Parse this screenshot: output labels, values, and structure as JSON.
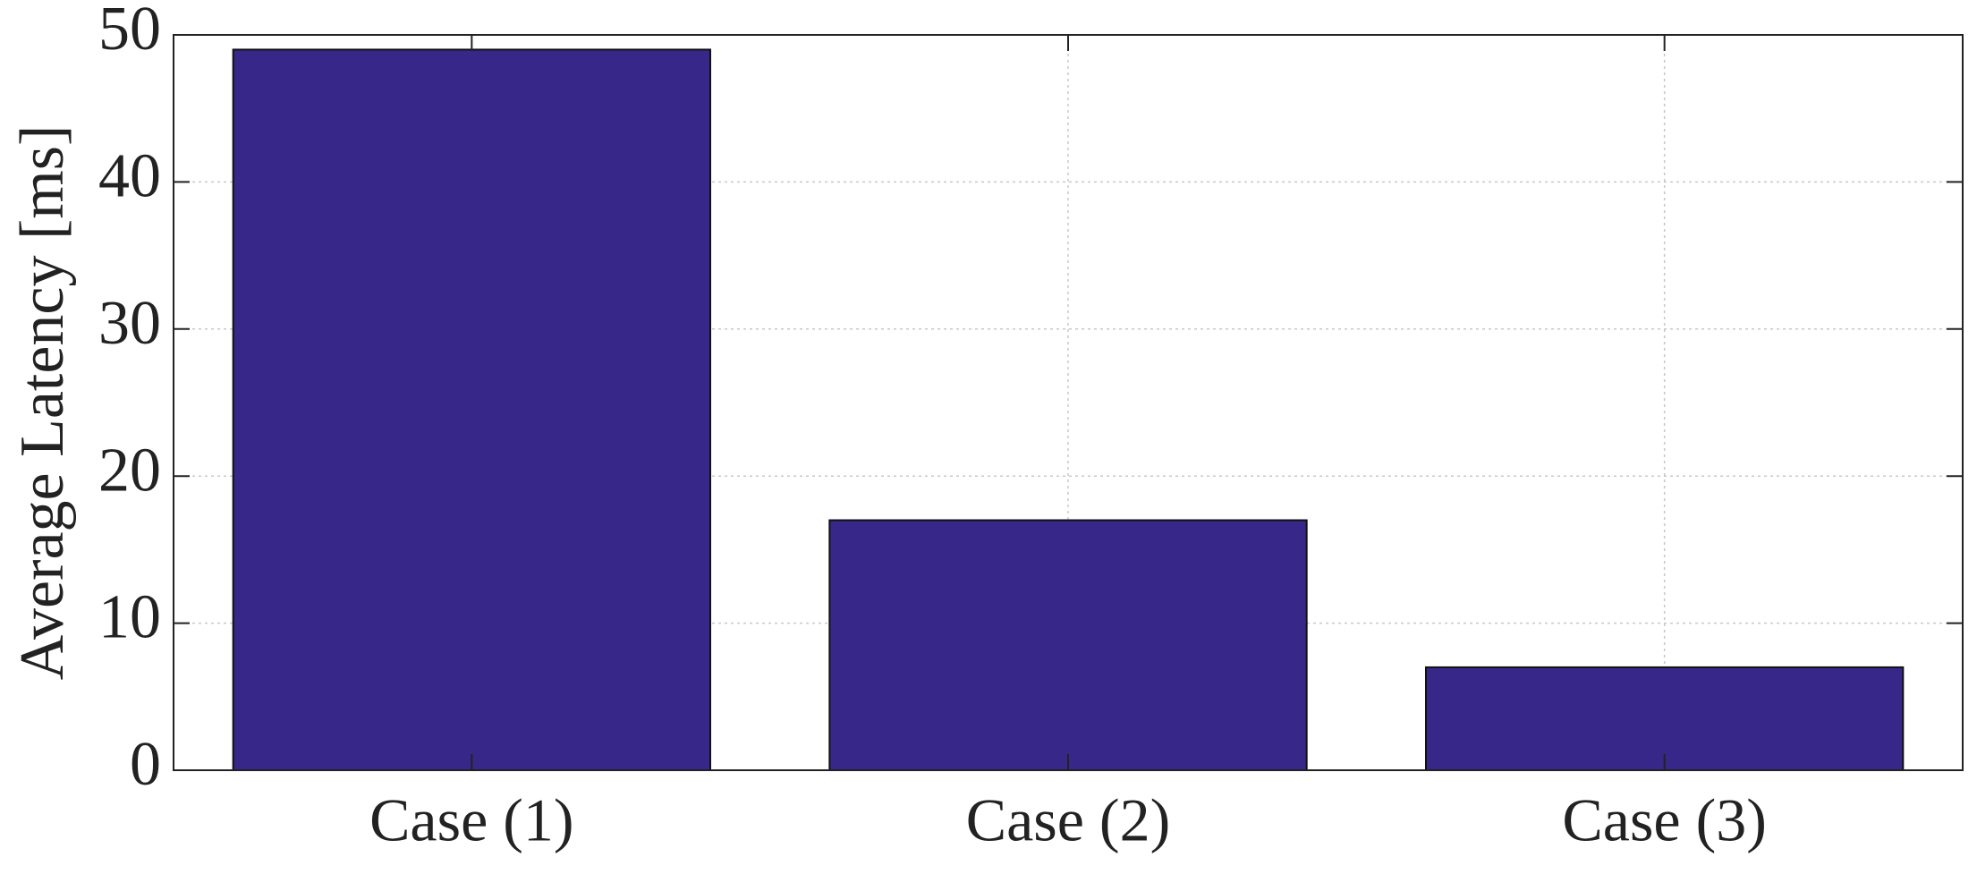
{
  "chart_data": {
    "type": "bar",
    "ylabel": "Average Latency  [ms]",
    "categories": [
      "Case (1)",
      "Case (2)",
      "Case (3)"
    ],
    "values": [
      49,
      17,
      7
    ],
    "color": "#372788",
    "ylim": [
      0,
      50
    ],
    "yticks": [
      0,
      10,
      20,
      30,
      40,
      50
    ],
    "grid": true
  }
}
